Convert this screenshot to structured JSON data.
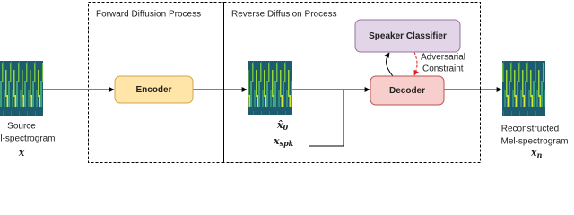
{
  "sections": [
    "Forward Diffusion Process",
    "Reverse Diffusion Process"
  ],
  "nodes": {
    "encoder": "Encoder",
    "speaker_classifier": "Speaker Classifier",
    "decoder": "Decoder"
  },
  "source": {
    "line1": "Source",
    "line2": "Mel-spectrogram",
    "symbol": "x"
  },
  "latent": {
    "symbol": "x̂",
    "subscript": "0"
  },
  "speaker": {
    "symbol": "x",
    "subscript": "spk"
  },
  "annotation": {
    "line1": "Adversarial",
    "line2": "Constraint"
  },
  "output": {
    "line1": "Reconstructed",
    "line2": "Mel-spectrogram",
    "symbol": "x",
    "subscript": "n"
  }
}
